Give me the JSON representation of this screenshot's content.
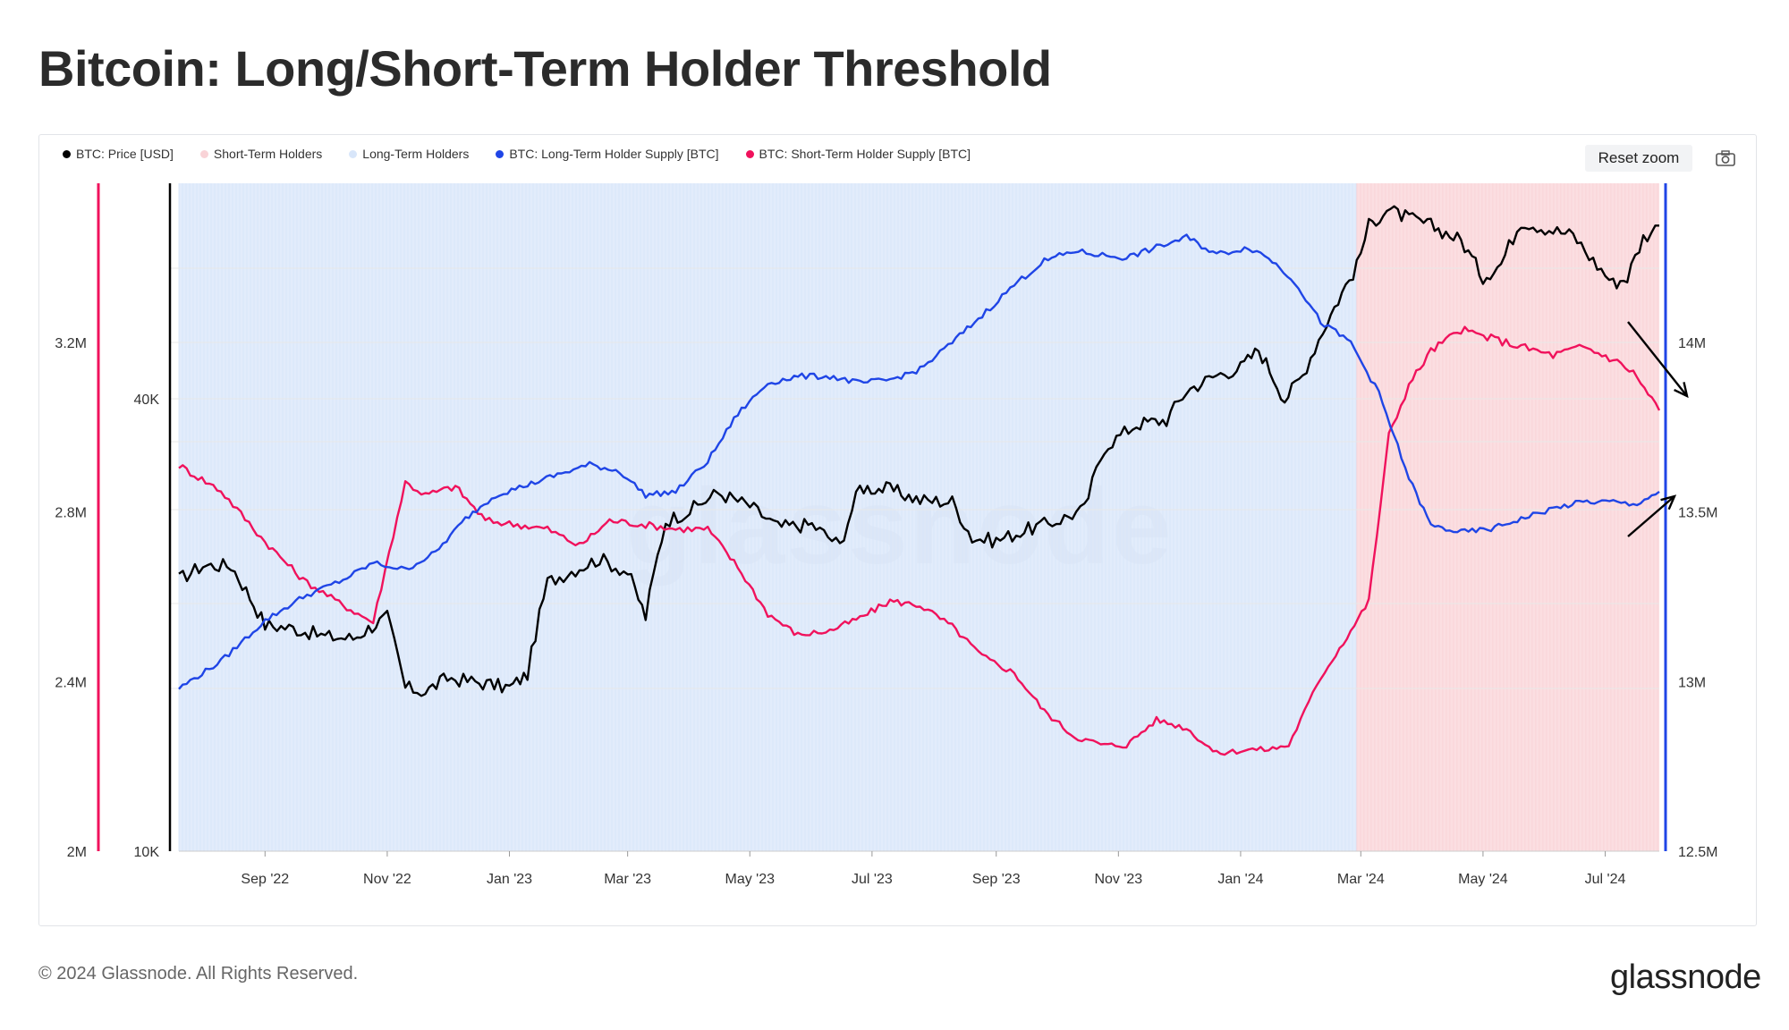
{
  "title": "Bitcoin: Long/Short-Term Holder Threshold",
  "legend": [
    {
      "label": "BTC: Price [USD]",
      "color": "#000000"
    },
    {
      "label": "Short-Term Holders",
      "color": "#f9d3d7"
    },
    {
      "label": "Long-Term Holders",
      "color": "#d8e6fa"
    },
    {
      "label": "BTC: Long-Term Holder Supply [BTC]",
      "color": "#1f45e6"
    },
    {
      "label": "BTC: Short-Term Holder Supply [BTC]",
      "color": "#f0125c"
    }
  ],
  "reset_zoom_label": "Reset zoom",
  "watermark": "glassnode",
  "footer": "© 2024 Glassnode. All Rights Reserved.",
  "brand": "glassnode",
  "chart_data": {
    "type": "line",
    "title": "Bitcoin: Long/Short-Term Holder Threshold",
    "x_ticks": [
      "Sep '22",
      "Nov '22",
      "Jan '23",
      "Mar '23",
      "May '23",
      "Jul '23",
      "Sep '23",
      "Nov '23",
      "Jan '24",
      "Mar '24",
      "May '24",
      "Jul '24"
    ],
    "y_left_sth_ticks": [
      "2M",
      "2.4M",
      "2.8M",
      "3.2M"
    ],
    "y_left_price_ticks": [
      "10K",
      "40K"
    ],
    "y_right_lth_ticks": [
      "12.5M",
      "13M",
      "13.5M",
      "14M"
    ],
    "price_scale": "log",
    "regime_shading": [
      {
        "name": "Long-Term Holders",
        "from": "2022-07-20",
        "to": "2024-02-28",
        "color": "#d8e6fa"
      },
      {
        "name": "Short-Term Holders",
        "from": "2024-02-28",
        "to": "2024-07-28",
        "color": "#f9d3d7"
      }
    ],
    "series": [
      {
        "name": "BTC: Price [USD]",
        "color": "#000000",
        "axis": "left-price",
        "x": [
          "2022-07-20",
          "2022-08-01",
          "2022-08-15",
          "2022-09-01",
          "2022-09-15",
          "2022-10-01",
          "2022-10-15",
          "2022-11-01",
          "2022-11-10",
          "2022-11-20",
          "2022-12-01",
          "2022-12-15",
          "2023-01-01",
          "2023-01-10",
          "2023-01-20",
          "2023-02-01",
          "2023-02-15",
          "2023-03-01",
          "2023-03-10",
          "2023-03-20",
          "2023-04-01",
          "2023-04-15",
          "2023-05-01",
          "2023-05-15",
          "2023-06-01",
          "2023-06-15",
          "2023-06-25",
          "2023-07-10",
          "2023-07-25",
          "2023-08-10",
          "2023-08-20",
          "2023-09-01",
          "2023-09-15",
          "2023-10-01",
          "2023-10-15",
          "2023-10-25",
          "2023-11-10",
          "2023-11-25",
          "2023-12-05",
          "2023-12-20",
          "2024-01-01",
          "2024-01-10",
          "2024-01-23",
          "2024-02-01",
          "2024-02-15",
          "2024-02-28",
          "2024-03-05",
          "2024-03-14",
          "2024-03-25",
          "2024-04-05",
          "2024-04-20",
          "2024-05-01",
          "2024-05-10",
          "2024-05-20",
          "2024-06-01",
          "2024-06-15",
          "2024-06-25",
          "2024-07-05",
          "2024-07-12",
          "2024-07-20",
          "2024-07-28"
        ],
        "values": [
          23000,
          24000,
          24000,
          20000,
          19800,
          19300,
          19200,
          20500,
          16500,
          16300,
          17000,
          16800,
          16500,
          17200,
          22800,
          23600,
          24500,
          23500,
          20500,
          27500,
          28400,
          30000,
          28800,
          27000,
          27200,
          25500,
          30500,
          30300,
          29300,
          29200,
          26100,
          25900,
          26700,
          27500,
          28500,
          34500,
          37000,
          37500,
          41000,
          43000,
          44000,
          46500,
          39900,
          43000,
          51800,
          60000,
          68000,
          71500,
          69500,
          68000,
          65000,
          58000,
          60500,
          69000,
          67500,
          66000,
          61000,
          57000,
          58000,
          65500,
          68000
        ]
      },
      {
        "name": "BTC: Short-Term Holder Supply [BTC]",
        "color": "#f0125c",
        "axis": "left-sth",
        "x": [
          "2022-07-20",
          "2022-08-10",
          "2022-09-01",
          "2022-09-20",
          "2022-10-10",
          "2022-10-25",
          "2022-11-10",
          "2022-11-20",
          "2022-12-05",
          "2022-12-20",
          "2023-01-05",
          "2023-01-20",
          "2023-02-05",
          "2023-02-20",
          "2023-03-10",
          "2023-03-25",
          "2023-04-10",
          "2023-04-25",
          "2023-05-10",
          "2023-05-25",
          "2023-06-10",
          "2023-06-25",
          "2023-07-10",
          "2023-07-25",
          "2023-08-10",
          "2023-08-25",
          "2023-09-10",
          "2023-09-25",
          "2023-10-10",
          "2023-10-25",
          "2023-11-05",
          "2023-11-20",
          "2023-12-05",
          "2023-12-20",
          "2024-01-05",
          "2024-01-15",
          "2024-01-25",
          "2024-02-10",
          "2024-02-25",
          "2024-03-05",
          "2024-03-15",
          "2024-03-25",
          "2024-04-05",
          "2024-04-20",
          "2024-05-05",
          "2024-05-20",
          "2024-06-05",
          "2024-06-20",
          "2024-07-05",
          "2024-07-15",
          "2024-07-28"
        ],
        "values": [
          2910000,
          2850000,
          2730000,
          2640000,
          2580000,
          2540000,
          2870000,
          2840000,
          2860000,
          2780000,
          2770000,
          2760000,
          2720000,
          2780000,
          2770000,
          2760000,
          2760000,
          2670000,
          2560000,
          2510000,
          2520000,
          2550000,
          2590000,
          2580000,
          2530000,
          2460000,
          2420000,
          2330000,
          2270000,
          2250000,
          2250000,
          2310000,
          2290000,
          2230000,
          2240000,
          2240000,
          2250000,
          2410000,
          2520000,
          2590000,
          2980000,
          3100000,
          3180000,
          3230000,
          3210000,
          3190000,
          3170000,
          3190000,
          3160000,
          3130000,
          3040000
        ]
      },
      {
        "name": "BTC: Long-Term Holder Supply [BTC]",
        "color": "#1f45e6",
        "axis": "right-lth",
        "x": [
          "2022-07-20",
          "2022-08-10",
          "2022-09-01",
          "2022-09-20",
          "2022-10-10",
          "2022-10-25",
          "2022-11-10",
          "2022-11-25",
          "2022-12-10",
          "2022-12-25",
          "2023-01-10",
          "2023-01-25",
          "2023-02-10",
          "2023-02-25",
          "2023-03-10",
          "2023-03-25",
          "2023-04-10",
          "2023-04-25",
          "2023-05-10",
          "2023-05-25",
          "2023-06-10",
          "2023-06-25",
          "2023-07-10",
          "2023-07-25",
          "2023-08-10",
          "2023-08-25",
          "2023-09-10",
          "2023-09-25",
          "2023-10-10",
          "2023-10-20",
          "2023-11-05",
          "2023-11-20",
          "2023-12-05",
          "2023-12-20",
          "2024-01-05",
          "2024-01-15",
          "2024-01-28",
          "2024-02-10",
          "2024-02-25",
          "2024-03-10",
          "2024-03-25",
          "2024-04-05",
          "2024-04-20",
          "2024-05-05",
          "2024-05-20",
          "2024-06-05",
          "2024-06-20",
          "2024-07-05",
          "2024-07-15",
          "2024-07-28"
        ],
        "values": [
          12980000,
          13060000,
          13180000,
          13250000,
          13300000,
          13350000,
          13330000,
          13380000,
          13480000,
          13550000,
          13580000,
          13610000,
          13640000,
          13620000,
          13550000,
          13560000,
          13650000,
          13790000,
          13880000,
          13900000,
          13900000,
          13880000,
          13890000,
          13920000,
          14000000,
          14080000,
          14170000,
          14240000,
          14270000,
          14260000,
          14250000,
          14280000,
          14310000,
          14260000,
          14280000,
          14250000,
          14180000,
          14060000,
          14000000,
          13850000,
          13600000,
          13460000,
          13440000,
          13450000,
          13480000,
          13510000,
          13530000,
          13530000,
          13520000,
          13560000
        ]
      }
    ]
  }
}
